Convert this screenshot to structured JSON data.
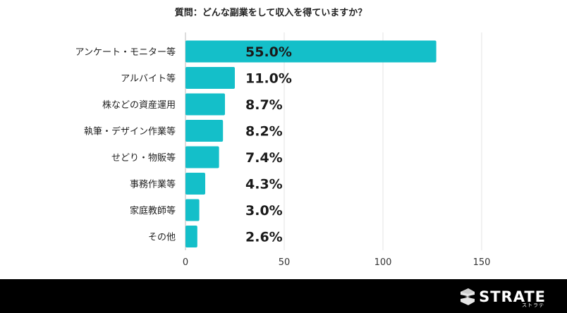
{
  "chart_data": {
    "type": "bar",
    "orientation": "horizontal",
    "title": "質問：どんな副業をして収入を得ていますか？",
    "categories": [
      "アンケート・モニター等",
      "アルバイト等",
      "株などの資産運用",
      "執筆・デザイン作業等",
      "せどり・物販等",
      "事務作業等",
      "家庭教師等",
      "その他"
    ],
    "values": [
      55.0,
      11.0,
      8.7,
      8.2,
      7.4,
      4.3,
      3.0,
      2.6
    ],
    "value_labels": [
      "55.0%",
      "11.0%",
      "8.7%",
      "8.2%",
      "7.4%",
      "4.3%",
      "3.0%",
      "2.6%"
    ],
    "bar_lengths": [
      127,
      25,
      20,
      19,
      17,
      10,
      7,
      6
    ],
    "xticks": [
      0,
      50,
      100,
      150
    ],
    "xlim": [
      0,
      175
    ],
    "grid": true,
    "bar_color": "#14BFC9",
    "xlabel": "",
    "ylabel": ""
  },
  "footer": {
    "brand": "STRATE",
    "brand_sub": "ストラテ",
    "background": "#000000"
  }
}
